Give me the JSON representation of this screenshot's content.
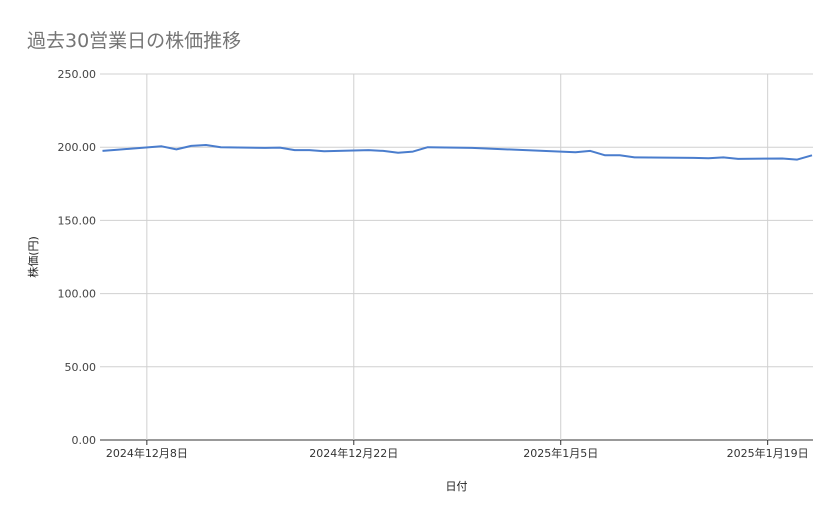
{
  "chart_data": {
    "type": "line",
    "title": "過去30営業日の株価推移",
    "xlabel": "日付",
    "ylabel": "株価(円)",
    "ylim": [
      0,
      250
    ],
    "xlim": [
      "2024-12-05",
      "2025-01-22"
    ],
    "yticks": [
      "0.00",
      "50.00",
      "100.00",
      "150.00",
      "200.00",
      "250.00"
    ],
    "xticks": [
      {
        "date": "2024-12-08",
        "label": "2024年12月8日"
      },
      {
        "date": "2024-12-22",
        "label": "2024年12月22日"
      },
      {
        "date": "2025-01-05",
        "label": "2025年1月5日"
      },
      {
        "date": "2025-01-19",
        "label": "2025年1月19日"
      }
    ],
    "grid": true,
    "line_color": "#4a7dcd",
    "series": [
      {
        "x": [
          "2024-12-05",
          "2024-12-06",
          "2024-12-09",
          "2024-12-10",
          "2024-12-11",
          "2024-12-12",
          "2024-12-13",
          "2024-12-16",
          "2024-12-17",
          "2024-12-18",
          "2024-12-19",
          "2024-12-20",
          "2024-12-23",
          "2024-12-24",
          "2024-12-25",
          "2024-12-26",
          "2024-12-27",
          "2024-12-30",
          "2025-01-06",
          "2025-01-07",
          "2025-01-08",
          "2025-01-09",
          "2025-01-10",
          "2025-01-14",
          "2025-01-15",
          "2025-01-16",
          "2025-01-17",
          "2025-01-20",
          "2025-01-21",
          "2025-01-22"
        ],
        "values": [
          197.5,
          198.3,
          200.6,
          198.5,
          200.9,
          201.5,
          200.0,
          199.5,
          199.7,
          198.0,
          198.0,
          197.2,
          198.0,
          197.5,
          196.2,
          197.0,
          200.0,
          199.5,
          196.5,
          197.5,
          194.5,
          194.5,
          193.0,
          192.7,
          192.5,
          193.0,
          192.0,
          192.3,
          191.5,
          194.5
        ]
      }
    ]
  }
}
